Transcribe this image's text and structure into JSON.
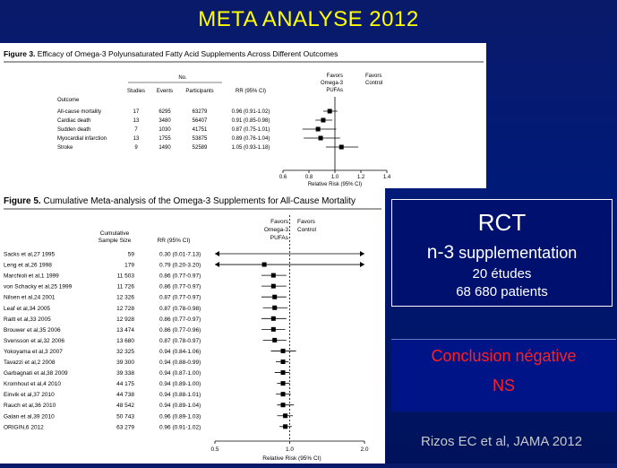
{
  "slide": {
    "title": "META ANALYSE 2012",
    "citation": "Rizos EC et al, JAMA 2012"
  },
  "rct_box": {
    "title": "RCT",
    "line1_prefix": "n-3",
    "line1_suffix": " supplementation",
    "line2": "20 études",
    "line3": "68 680 patients"
  },
  "conclusion": {
    "line1": "Conclusion négative",
    "line2": "NS"
  },
  "colors": {
    "title": "#ffff00",
    "conclusion": "#ff2020",
    "background": "#001a78"
  },
  "figure3": {
    "caption_bold": "Figure 3.",
    "caption_text": " Efficacy of Omega-3 Polyunsaturated Fatty Acid Supplements Across Different Outcomes",
    "no_header": "No.",
    "col_studies": "Studies",
    "col_events": "Events",
    "col_participants": "Participants",
    "col_rr": "RR (95% CI)",
    "favors_left": [
      "Favors",
      "Omega-3",
      "PUFAs"
    ],
    "favors_right": [
      "Favors",
      "Control"
    ],
    "outcome_label": "Outcome",
    "axis_title": "Relative Risk (95% CI)",
    "axis_ticks": [
      "0.6",
      "0.8",
      "1.0",
      "1.2",
      "1.4"
    ],
    "rows": [
      {
        "name": "All-cause mortality",
        "studies": "17",
        "events": "6295",
        "participants": "63279",
        "rr_text": "0.96 (0.91-1.02)",
        "rr": 0.96,
        "lo": 0.91,
        "hi": 1.02
      },
      {
        "name": "Cardiac death",
        "studies": "13",
        "events": "3480",
        "participants": "56407",
        "rr_text": "0.91 (0.85-0.98)",
        "rr": 0.91,
        "lo": 0.85,
        "hi": 0.98
      },
      {
        "name": "Sudden death",
        "studies": "7",
        "events": "1030",
        "participants": "41751",
        "rr_text": "0.87 (0.75-1.01)",
        "rr": 0.87,
        "lo": 0.75,
        "hi": 1.01
      },
      {
        "name": "Myocardial infarction",
        "studies": "13",
        "events": "1755",
        "participants": "53875",
        "rr_text": "0.89 (0.76-1.04)",
        "rr": 0.89,
        "lo": 0.76,
        "hi": 1.04
      },
      {
        "name": "Stroke",
        "studies": "9",
        "events": "1490",
        "participants": "52589",
        "rr_text": "1.05 (0.93-1.18)",
        "rr": 1.05,
        "lo": 0.93,
        "hi": 1.18
      }
    ]
  },
  "figure5": {
    "caption_bold": "Figure 5.",
    "caption_text": " Cumulative Meta-analysis of the Omega-3 Supplements for All-Cause Mortality",
    "col_sample": [
      "Cumulative",
      "Sample Size"
    ],
    "col_rr": "RR (95% CI)",
    "favors_left": [
      "Favors",
      "Omega-3",
      "PUFAs"
    ],
    "favors_right": [
      "Favors",
      "Control"
    ],
    "axis_title": "Relative Risk (95% CI)",
    "axis_ticks": [
      "0.5",
      "1.0",
      "2.0"
    ],
    "rows": [
      {
        "name": "Sacks et al,27 1995",
        "n": "59",
        "rr_text": "0.30 (0.01-7.13)",
        "rr": 0.3,
        "lo": 0.01,
        "hi": 7.13
      },
      {
        "name": "Leng et al,26 1998",
        "n": "179",
        "rr_text": "0.79 (0.20-3.20)",
        "rr": 0.79,
        "lo": 0.2,
        "hi": 3.2
      },
      {
        "name": "Marchioli et al,1 1999",
        "n": "11 503",
        "rr_text": "0.86 (0.77-0.97)",
        "rr": 0.86,
        "lo": 0.77,
        "hi": 0.97
      },
      {
        "name": "von Schacky et al,25 1999",
        "n": "11 726",
        "rr_text": "0.86 (0.77-0.97)",
        "rr": 0.86,
        "lo": 0.77,
        "hi": 0.97
      },
      {
        "name": "Nilsen et al,24 2001",
        "n": "12 326",
        "rr_text": "0.87 (0.77-0.97)",
        "rr": 0.87,
        "lo": 0.77,
        "hi": 0.97
      },
      {
        "name": "Leaf et al,34 2005",
        "n": "12 728",
        "rr_text": "0.87 (0.78-0.98)",
        "rr": 0.87,
        "lo": 0.78,
        "hi": 0.98
      },
      {
        "name": "Raitt et al,33 2005",
        "n": "12 928",
        "rr_text": "0.86 (0.77-0.97)",
        "rr": 0.86,
        "lo": 0.77,
        "hi": 0.97
      },
      {
        "name": "Brouwer et al,35 2006",
        "n": "13 474",
        "rr_text": "0.86 (0.77-0.96)",
        "rr": 0.86,
        "lo": 0.77,
        "hi": 0.96
      },
      {
        "name": "Svensson et al,32 2006",
        "n": "13 680",
        "rr_text": "0.87 (0.78-0.97)",
        "rr": 0.87,
        "lo": 0.78,
        "hi": 0.97
      },
      {
        "name": "Yokoyama et al,3 2007",
        "n": "32 325",
        "rr_text": "0.94 (0.84-1.06)",
        "rr": 0.94,
        "lo": 0.84,
        "hi": 1.06
      },
      {
        "name": "Tavazzi et al,2 2008",
        "n": "39 300",
        "rr_text": "0.94 (0.88-0.99)",
        "rr": 0.94,
        "lo": 0.88,
        "hi": 0.99
      },
      {
        "name": "Garbagnati et al,38 2009",
        "n": "39 338",
        "rr_text": "0.94 (0.87-1.00)",
        "rr": 0.94,
        "lo": 0.87,
        "hi": 1.0
      },
      {
        "name": "Kromhout et al,4 2010",
        "n": "44 175",
        "rr_text": "0.94 (0.89-1.00)",
        "rr": 0.94,
        "lo": 0.89,
        "hi": 1.0
      },
      {
        "name": "Einvik et al,37 2010",
        "n": "44 738",
        "rr_text": "0.94 (0.88-1.01)",
        "rr": 0.94,
        "lo": 0.88,
        "hi": 1.01
      },
      {
        "name": "Rauch et al,36 2010",
        "n": "48 542",
        "rr_text": "0.94 (0.89-1.04)",
        "rr": 0.94,
        "lo": 0.89,
        "hi": 1.04
      },
      {
        "name": "Galan et al,39 2010",
        "n": "50 743",
        "rr_text": "0.96 (0.89-1.03)",
        "rr": 0.96,
        "lo": 0.89,
        "hi": 1.03
      },
      {
        "name": "ORIGIN,6 2012",
        "n": "63 279",
        "rr_text": "0.96 (0.91-1.02)",
        "rr": 0.96,
        "lo": 0.91,
        "hi": 1.02
      }
    ]
  }
}
